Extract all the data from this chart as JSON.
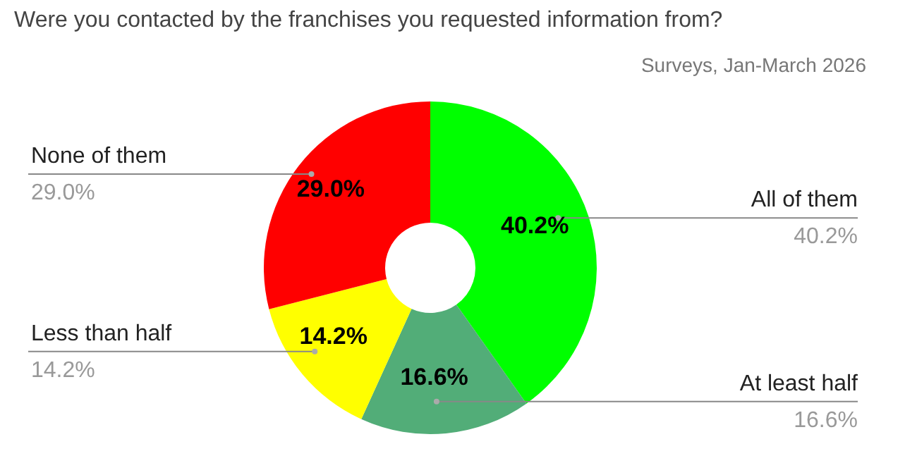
{
  "chart_data": {
    "type": "donut",
    "title": "Were you contacted by the franchises you requested information from?",
    "annotations": [
      "Surveys, Jan-March 2026"
    ],
    "categories": [
      "All of them",
      "At least half",
      "Less than half",
      "None of them"
    ],
    "values": [
      40.2,
      16.6,
      14.2,
      29.0
    ],
    "value_labels": [
      "40.2%",
      "16.6%",
      "14.2%",
      "29.0%"
    ],
    "colors": [
      "#00ff00",
      "#52ad78",
      "#ffff00",
      "#ff0000"
    ],
    "legend": false
  }
}
